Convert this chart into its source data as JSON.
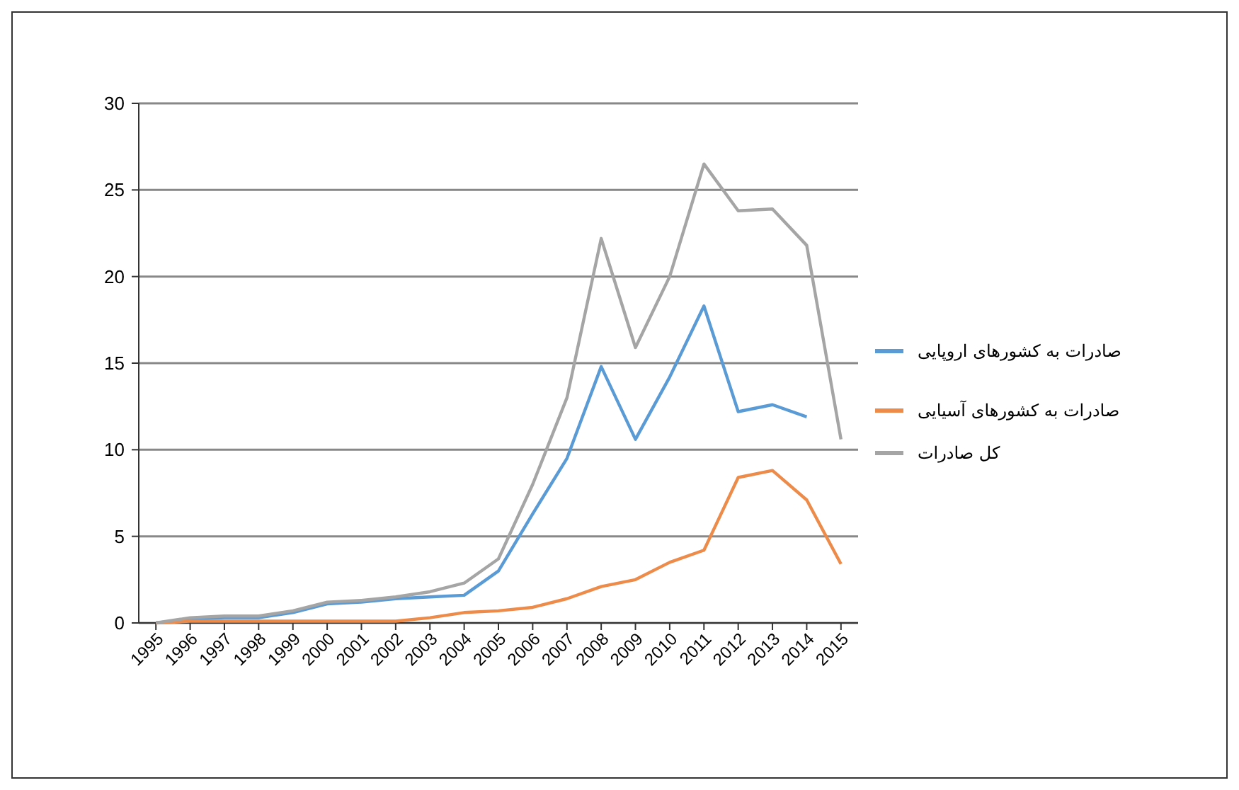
{
  "chart_data": {
    "type": "line",
    "categories": [
      "1995",
      "1996",
      "1997",
      "1998",
      "1999",
      "2000",
      "2001",
      "2002",
      "2003",
      "2004",
      "2005",
      "2006",
      "2007",
      "2008",
      "2009",
      "2010",
      "2011",
      "2012",
      "2013",
      "2014",
      "2015"
    ],
    "series": [
      {
        "name": "صادرات به کشورهای اروپایی",
        "color": "#5b9bd5",
        "values": [
          0,
          0.2,
          0.3,
          0.3,
          0.6,
          1.1,
          1.2,
          1.4,
          1.5,
          1.6,
          3.0,
          6.3,
          9.5,
          14.8,
          10.6,
          14.2,
          18.3,
          12.2,
          12.6,
          11.9,
          null
        ]
      },
      {
        "name": "صادرات به کشورهای آسیایی",
        "color": "#ed8c4a",
        "values": [
          0,
          0.1,
          0.1,
          0.1,
          0.1,
          0.1,
          0.1,
          0.1,
          0.3,
          0.6,
          0.7,
          0.9,
          1.4,
          2.1,
          2.5,
          3.5,
          4.2,
          8.4,
          8.8,
          7.1,
          3.4
        ]
      },
      {
        "name": "کل صادرات",
        "color": "#a5a5a5",
        "values": [
          0,
          0.3,
          0.4,
          0.4,
          0.7,
          1.2,
          1.3,
          1.5,
          1.8,
          2.3,
          3.7,
          8,
          13,
          22.2,
          15.9,
          20,
          26.5,
          23.8,
          23.9,
          21.8,
          10.6
        ]
      }
    ],
    "ylim": [
      0,
      30
    ],
    "yticks": [
      0,
      5,
      10,
      15,
      20,
      25,
      30
    ],
    "grid": "y",
    "legend": "right",
    "marker": "none",
    "line_style": "solid"
  }
}
